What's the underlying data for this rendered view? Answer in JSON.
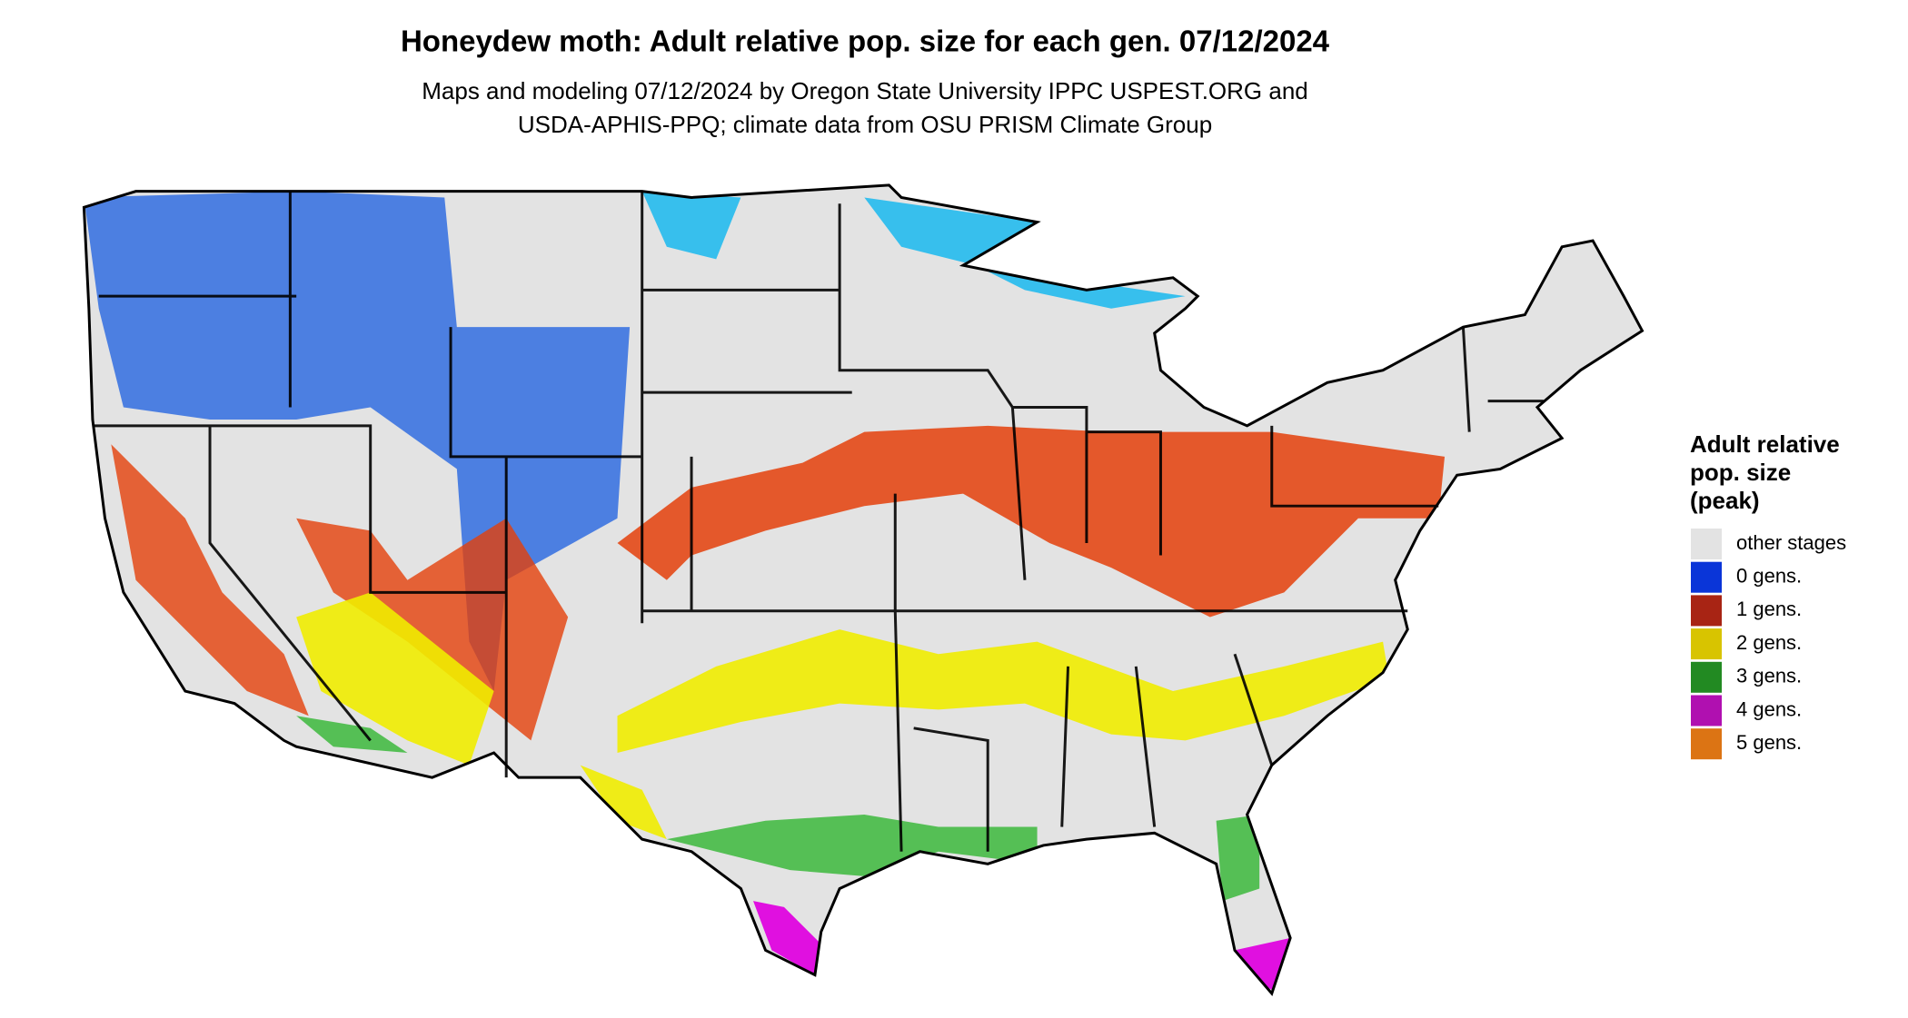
{
  "header": {
    "title": "Honeydew moth: Adult relative pop. size for each gen. 07/12/2024",
    "subtitle": [
      "Maps and modeling 07/12/2024 by Oregon State University IPPC USPEST.ORG and",
      "USDA-APHIS-PPQ; climate data from OSU PRISM Climate Group"
    ]
  },
  "legend": {
    "title": [
      "Adult relative",
      "pop. size",
      "(peak)"
    ],
    "items": [
      {
        "label": "other stages",
        "color": "#e3e3e3"
      },
      {
        "label": "0 gens.",
        "color": "#0a35d8"
      },
      {
        "label": "1 gens.",
        "color": "#a82414"
      },
      {
        "label": "2 gens.",
        "color": "#d8c400"
      },
      {
        "label": "3 gens.",
        "color": "#228a22"
      },
      {
        "label": "4 gens.",
        "color": "#b010b0"
      },
      {
        "label": "5 gens.",
        "color": "#dc7414"
      }
    ]
  }
}
